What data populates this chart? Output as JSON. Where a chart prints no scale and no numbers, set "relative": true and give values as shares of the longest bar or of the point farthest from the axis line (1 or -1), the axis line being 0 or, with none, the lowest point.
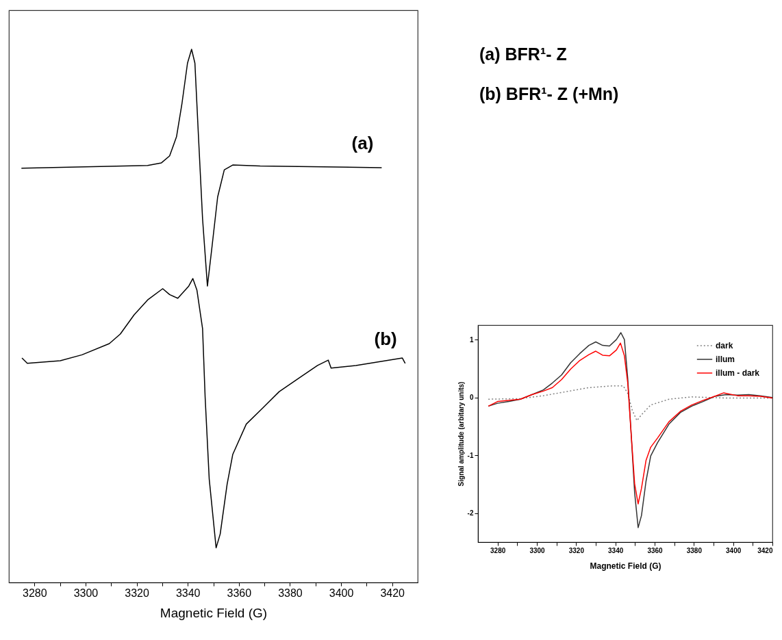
{
  "chart_data": [
    {
      "type": "line",
      "xlabel": "Magnetic Field (G)",
      "relative": true,
      "legend": false,
      "grid": false,
      "marker": "none",
      "line_style": "solid",
      "annotations": [
        "(a) BFR¹- Z",
        "(b) BFR¹- Z (+Mn)"
      ],
      "xlim": [
        3270,
        3430
      ],
      "xticks": [
        3280,
        {
          "value": 3290,
          "label": null
        },
        3300,
        {
          "value": 3310,
          "label": null
        },
        3320,
        {
          "value": 3330,
          "label": null
        },
        3340,
        {
          "value": 3350,
          "label": null
        },
        3360,
        {
          "value": 3370,
          "label": null
        },
        3380,
        {
          "value": 3390,
          "label": null
        },
        3400,
        {
          "value": 3410,
          "label": null
        },
        3420
      ],
      "series": [
        {
          "name": "(a)",
          "color": "#000000",
          "x": [
            3274.9,
            3324.3,
            3329.7,
            3332.9,
            3335.6,
            3337.7,
            3339.9,
            3341.5,
            3342.8,
            3344.2,
            3345.8,
            3347.7,
            3349.5,
            3351.7,
            3354.3,
            3357.6,
            3368.3,
            3415.9
          ],
          "values": [
            0.777,
            0.782,
            0.787,
            0.8,
            0.836,
            0.897,
            0.974,
            1.0,
            0.974,
            0.836,
            0.682,
            0.556,
            0.63,
            0.723,
            0.774,
            0.783,
            0.781,
            0.778
          ]
        },
        {
          "name": "(b)",
          "color": "#000000",
          "x": [
            3275.1,
            3277.2,
            3290.1,
            3298.6,
            3309.3,
            3313.6,
            3319.0,
            3324.3,
            3330.2,
            3332.9,
            3336.1,
            3340.4,
            3342.0,
            3343.6,
            3345.8,
            3346.8,
            3348.4,
            3351.1,
            3352.7,
            3355.4,
            3357.6,
            3362.9,
            3369.3,
            3375.8,
            3384.3,
            3390.8,
            3395.0,
            3396.1,
            3405.8,
            3424.0,
            3425.1
          ],
          "values": [
            0.421,
            0.411,
            0.416,
            0.427,
            0.448,
            0.466,
            0.502,
            0.53,
            0.551,
            0.54,
            0.533,
            0.556,
            0.57,
            0.548,
            0.476,
            0.348,
            0.194,
            0.065,
            0.091,
            0.184,
            0.24,
            0.297,
            0.327,
            0.358,
            0.386,
            0.407,
            0.417,
            0.402,
            0.407,
            0.421,
            0.411
          ]
        }
      ]
    },
    {
      "type": "line",
      "xlabel": "Magnetic Field (G)",
      "ylabel": "Signal amplitude (arbitary units)",
      "legend": "top right",
      "grid": false,
      "marker": "none",
      "xlim": [
        3270,
        3420
      ],
      "ylim": [
        -2.5,
        1.25
      ],
      "xticks": [
        3280,
        {
          "value": 3290,
          "label": null
        },
        3300,
        {
          "value": 3310,
          "label": null
        },
        3320,
        {
          "value": 3330,
          "label": null
        },
        3340,
        {
          "value": 3350,
          "label": null
        },
        3360,
        {
          "value": 3370,
          "label": null
        },
        3380,
        {
          "value": 3390,
          "label": null
        },
        3400,
        {
          "value": 3410,
          "label": null
        },
        3420
      ],
      "yticks": [
        -2,
        -1,
        0,
        1
      ],
      "series": [
        {
          "name": "dark",
          "color": "#808080",
          "line_style": "dotted",
          "x": [
            3275.3,
            3291.6,
            3303.3,
            3314.9,
            3326.5,
            3338.2,
            3344.0,
            3346.3,
            3348.6,
            3351.0,
            3353.3,
            3358.0,
            3367.3,
            3378.9,
            3396.4,
            3420
          ],
          "values": [
            -0.03,
            -0.02,
            0.03,
            0.1,
            0.17,
            0.2,
            0.2,
            0.07,
            -0.22,
            -0.4,
            -0.3,
            -0.13,
            -0.03,
            0.01,
            -0.01,
            -0.01
          ]
        },
        {
          "name": "illum",
          "color": "#333333",
          "line_style": "solid",
          "x": [
            3275.3,
            3280,
            3285.8,
            3291.6,
            3297.5,
            3303.3,
            3307.9,
            3312.6,
            3317.2,
            3321.9,
            3326.5,
            3330.0,
            3333.5,
            3337.0,
            3340.5,
            3342.8,
            3344.6,
            3346.3,
            3348.1,
            3349.8,
            3351.6,
            3353.3,
            3355.6,
            3358.0,
            3361.5,
            3367.3,
            3373.1,
            3378.9,
            3384.7,
            3390.6,
            3396.4,
            3402.2,
            3408.0,
            3413.8,
            3420
          ],
          "values": [
            -0.15,
            -0.1,
            -0.07,
            -0.03,
            0.05,
            0.13,
            0.25,
            0.39,
            0.6,
            0.76,
            0.9,
            0.96,
            0.9,
            0.89,
            1.0,
            1.12,
            1.0,
            0.33,
            -0.66,
            -1.64,
            -2.25,
            -2.04,
            -1.45,
            -1.01,
            -0.78,
            -0.46,
            -0.26,
            -0.15,
            -0.07,
            0.02,
            0.05,
            0.04,
            0.05,
            0.03,
            0
          ]
        },
        {
          "name": "illum - dark",
          "color": "#ff0000",
          "line_style": "solid",
          "x": [
            3275.3,
            3280,
            3291.6,
            3297.5,
            3303.3,
            3307.9,
            3312.6,
            3317.2,
            3321.9,
            3326.5,
            3330.0,
            3333.5,
            3337.0,
            3340.5,
            3342.6,
            3344.6,
            3346.3,
            3348.1,
            3349.8,
            3351.6,
            3353.3,
            3355.6,
            3358.0,
            3361.5,
            3367.3,
            3373.1,
            3378.9,
            3384.7,
            3390.6,
            3395.2,
            3402.2,
            3408.0,
            3413.8,
            3420
          ],
          "values": [
            -0.15,
            -0.07,
            -0.03,
            0.05,
            0.11,
            0.17,
            0.31,
            0.49,
            0.64,
            0.74,
            0.8,
            0.73,
            0.72,
            0.82,
            0.94,
            0.72,
            0.25,
            -0.66,
            -1.49,
            -1.84,
            -1.57,
            -1.09,
            -0.86,
            -0.7,
            -0.42,
            -0.24,
            -0.13,
            -0.05,
            0.02,
            0.08,
            0.03,
            0.03,
            0.02,
            -0.01
          ]
        }
      ]
    }
  ]
}
